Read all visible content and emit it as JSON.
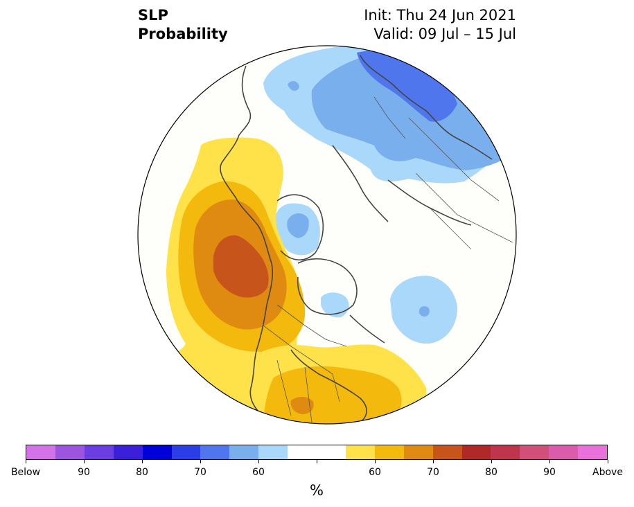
{
  "title": {
    "line1": "SLP",
    "line2": "Probability"
  },
  "init": {
    "line1": "Init: Thu 24 Jun 2021",
    "line2": "Valid: 09 Jul – 15 Jul"
  },
  "colorbar": {
    "units": "%",
    "below_colors": [
      "#d373e8",
      "#9d55e0",
      "#6b3ee2",
      "#3c1fd8",
      "#0000d8",
      "#2b3ee6",
      "#4f76ec",
      "#7aafee",
      "#aad8fa"
    ],
    "neutral_color": "#ffffff",
    "above_colors": [
      "#ffe14a",
      "#f3b90c",
      "#df8a10",
      "#c7541a",
      "#b02828",
      "#c0344c",
      "#d1507a",
      "#db5cab",
      "#e872d9"
    ],
    "labels": [
      "Below",
      "90",
      "80",
      "70",
      "60",
      "60",
      "70",
      "80",
      "90",
      "Above"
    ]
  },
  "map": {
    "projection": "north-polar-stereographic",
    "background_color": "#fefffa",
    "features": [
      "blue-below-normal-europe-russia",
      "blue-below-normal-greenland",
      "blue-below-normal-north-atlantic",
      "blue-below-normal-hudson-bay",
      "orange-above-normal-northeast-pacific",
      "orange-above-normal-western-canada",
      "orange-above-normal-eastern-united-states"
    ]
  }
}
